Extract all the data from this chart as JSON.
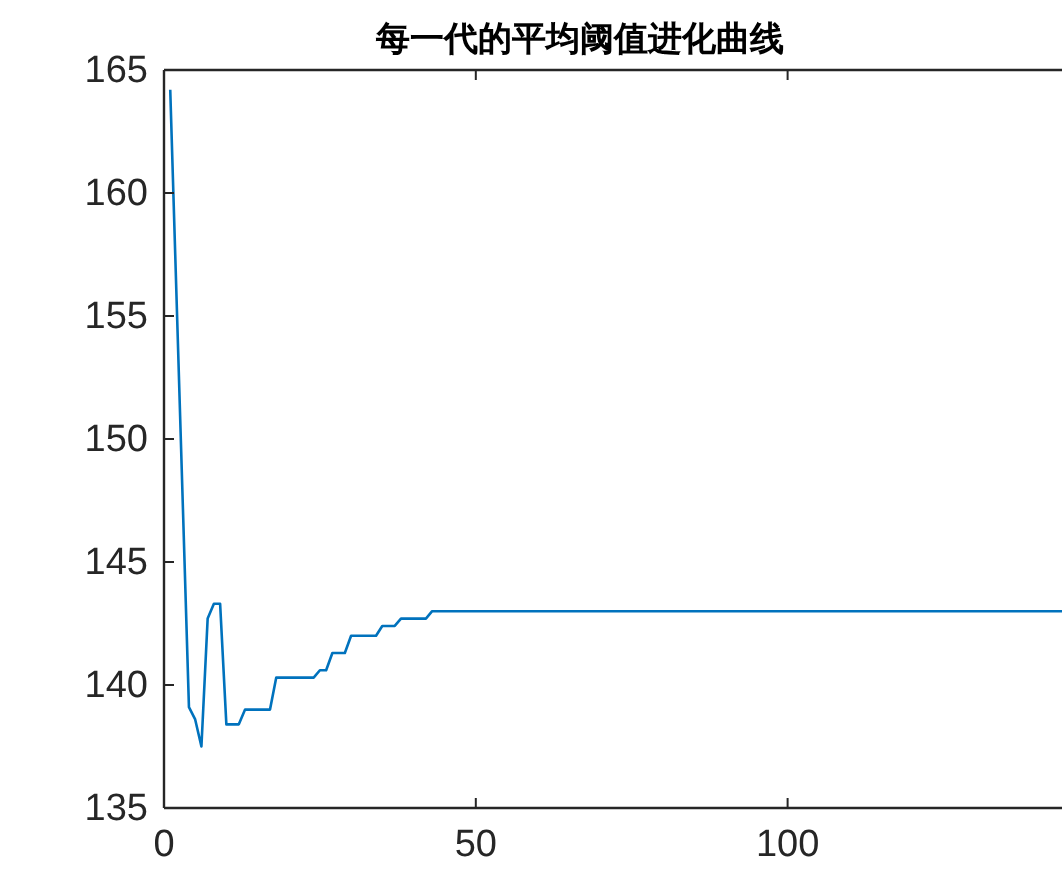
{
  "chart_data": {
    "type": "line",
    "title": "每一代的平均阈值进化曲线",
    "x": [
      1,
      4,
      5,
      6,
      7,
      8,
      9,
      10,
      12,
      13,
      17,
      18,
      24,
      25,
      26,
      27,
      29,
      30,
      34,
      35,
      37,
      38,
      42,
      43,
      144
    ],
    "series": [
      {
        "color": "#0072bd",
        "values": [
          164.2,
          139.1,
          138.6,
          137.5,
          142.7,
          143.3,
          143.3,
          138.4,
          138.4,
          139.0,
          139.0,
          140.3,
          140.3,
          140.6,
          140.6,
          141.3,
          141.3,
          142.0,
          142.0,
          142.4,
          142.4,
          142.7,
          142.7,
          143.0,
          143.0
        ]
      }
    ],
    "xlim": [
      0,
      144
    ],
    "ylim": [
      135,
      165
    ],
    "xticks": [
      0,
      50,
      100
    ],
    "yticks": [
      135,
      140,
      145,
      150,
      155,
      160,
      165
    ],
    "grid": false
  }
}
